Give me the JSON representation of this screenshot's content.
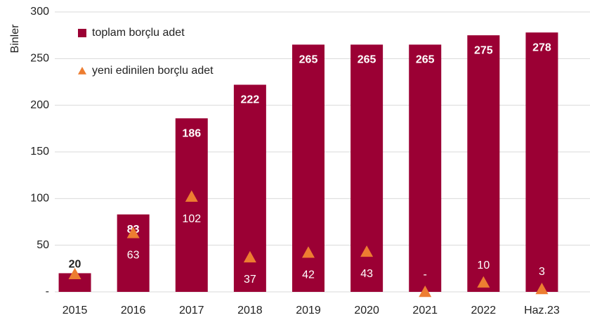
{
  "chart_data": {
    "type": "bar",
    "y_label": "Binler",
    "categories": [
      "2015",
      "2016",
      "2017",
      "2018",
      "2019",
      "2020",
      "2021",
      "2022",
      "Haz.23"
    ],
    "series": [
      {
        "name": "toplam borçlu adet",
        "type": "bar",
        "color": "#9b0034",
        "values": [
          20,
          83,
          186,
          222,
          265,
          265,
          265,
          275,
          278
        ]
      },
      {
        "name": "yeni edinilen borçlu adet",
        "type": "marker",
        "color": "#ed7d31",
        "values": [
          19,
          63,
          102,
          37,
          42,
          43,
          0,
          10,
          3
        ],
        "value_labels": [
          null,
          "63",
          "102",
          "37",
          "42",
          "43",
          "-",
          "10",
          "3"
        ]
      }
    ],
    "ylim": [
      0,
      300
    ],
    "yticks": [
      {
        "value": 0,
        "label": "-"
      },
      50,
      100,
      150,
      200,
      250,
      300
    ],
    "grid": true,
    "legend": "top-left"
  }
}
